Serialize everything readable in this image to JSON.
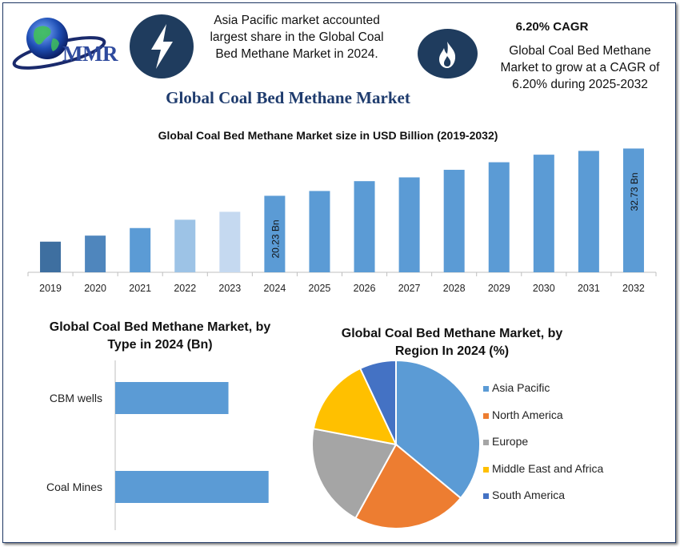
{
  "header": {
    "logo_text": "MMR",
    "highlight_left": [
      "Asia Pacific market accounted",
      "largest share in the Global Coal",
      "Bed Methane Market in 2024."
    ],
    "cagr_title": "6.20% CAGR",
    "highlight_right": [
      "Global Coal Bed Methane",
      "Market to grow at a CAGR of",
      "6.20% during 2025-2032"
    ],
    "icons": [
      "lightning-bolt-icon",
      "flame-icon"
    ]
  },
  "main_title": "Global Coal Bed Methane Market",
  "colors": {
    "navy": "#1f3c5e",
    "bar_main": "#5b9bd5",
    "asia_pacific": "#5b9bd5",
    "north_america": "#ed7d31",
    "europe": "#a5a5a5",
    "middle_east_africa": "#ffc000",
    "south_america": "#4472c4"
  },
  "chart_data": [
    {
      "type": "bar",
      "title": "Global Coal Bed Methane Market size in USD Billion (2019-2032)",
      "categories": [
        "2019",
        "2020",
        "2021",
        "2022",
        "2023",
        "2024",
        "2025",
        "2026",
        "2027",
        "2028",
        "2029",
        "2030",
        "2031",
        "2032"
      ],
      "values": [
        8.1,
        9.7,
        11.7,
        13.9,
        16.0,
        20.23,
        21.5,
        24.1,
        25.1,
        27.1,
        29.1,
        31.1,
        32.1,
        32.73
      ],
      "bar_colors": [
        "#3e6fa0",
        "#4f86bd",
        "#5b9bd5",
        "#9dc3e6",
        "#c5d9f0",
        "#5b9bd5",
        "#5b9bd5",
        "#5b9bd5",
        "#5b9bd5",
        "#5b9bd5",
        "#5b9bd5",
        "#5b9bd5",
        "#5b9bd5",
        "#5b9bd5"
      ],
      "data_labels": {
        "2024": "20.23 Bn",
        "2032": "32.73 Bn"
      },
      "ylim": [
        0,
        36
      ]
    },
    {
      "type": "bar",
      "orientation": "horizontal",
      "title": [
        "Global Coal Bed Methane Market, by",
        "Type in 2024 (Bn)"
      ],
      "categories": [
        "CBM wells",
        "Coal Mines"
      ],
      "values": [
        7.9,
        10.7
      ],
      "xlim": [
        0,
        12
      ],
      "color": "#5b9bd5"
    },
    {
      "type": "pie",
      "title": [
        "Global Coal Bed Methane Market, by",
        "Region In 2024 (%)"
      ],
      "labels": [
        "Asia Pacific",
        "North America",
        "Europe",
        "Middle East and Africa",
        "South America"
      ],
      "values": [
        36,
        22,
        20,
        15,
        7
      ],
      "colors": [
        "#5b9bd5",
        "#ed7d31",
        "#a5a5a5",
        "#ffc000",
        "#4472c4"
      ]
    }
  ]
}
